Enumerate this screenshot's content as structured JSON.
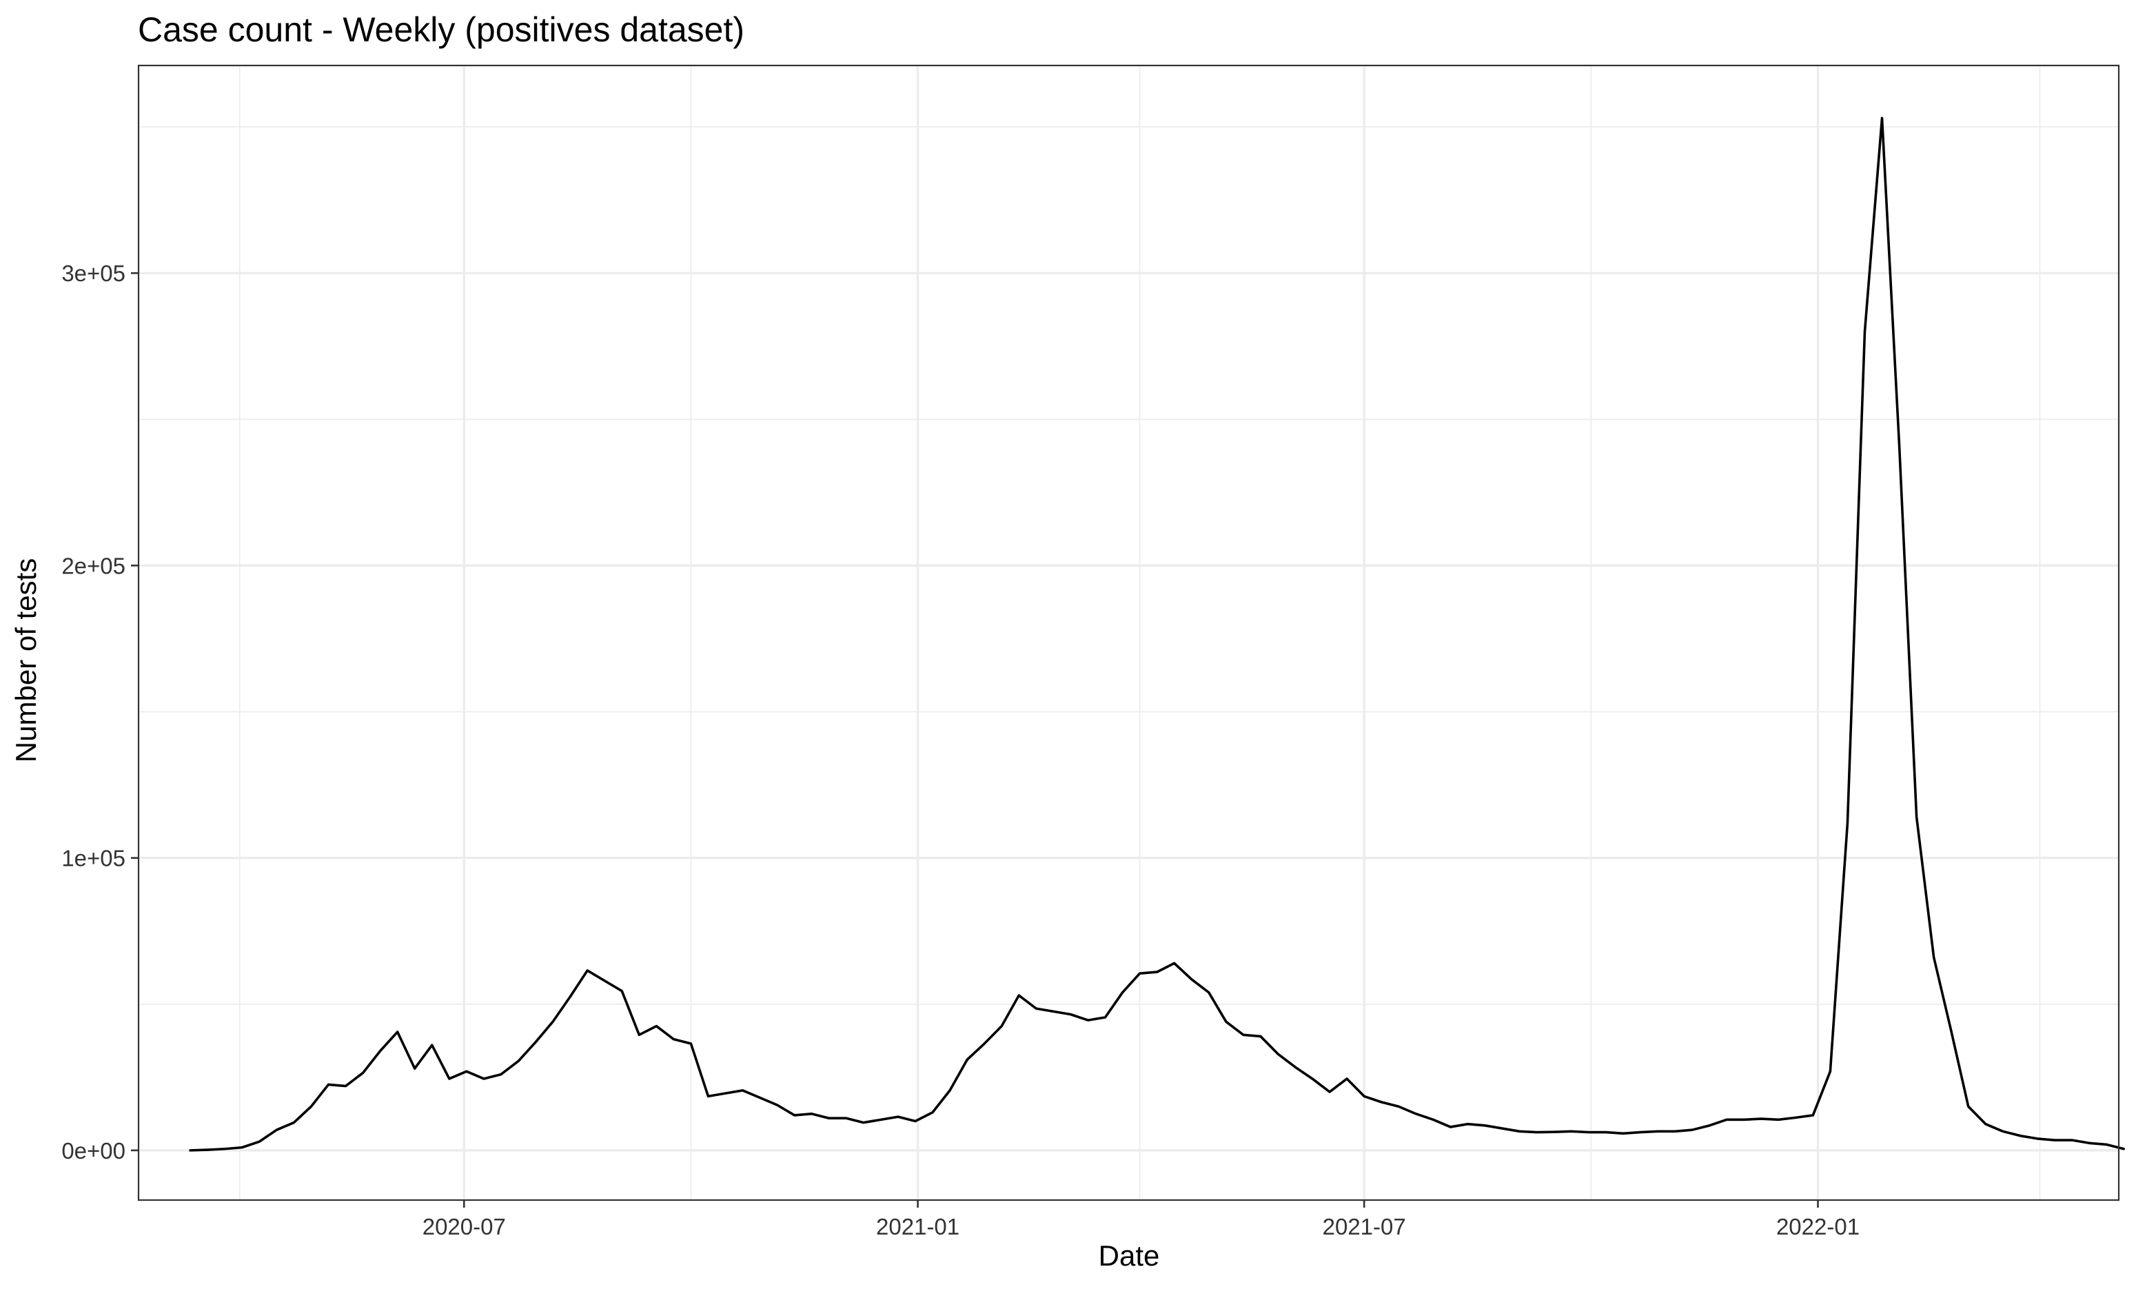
{
  "chart_data": {
    "type": "line",
    "title": "Case count - Weekly (positives dataset)",
    "xlabel": "Date",
    "ylabel": "Number of tests",
    "x_type": "date",
    "xlim": [
      "2020-02-20",
      "2022-05-03"
    ],
    "ylim": [
      -17000,
      371000
    ],
    "x_ticks": [
      "2020-07-01",
      "2021-01-01",
      "2021-07-01",
      "2022-01-01"
    ],
    "x_tick_labels": [
      "2020-07",
      "2021-01",
      "2021-07",
      "2022-01"
    ],
    "x_minor_ticks": [
      "2020-04-01",
      "2020-10-01",
      "2021-04-01",
      "2021-10-01",
      "2022-04-01"
    ],
    "y_ticks": [
      0,
      100000,
      200000,
      300000
    ],
    "y_tick_labels": [
      "0e+00",
      "1e+05",
      "2e+05",
      "3e+05"
    ],
    "y_minor_ticks": [
      50000,
      150000,
      250000,
      350000
    ],
    "grid": true,
    "legend": "none",
    "series": [
      {
        "color": "#000000",
        "points": [
          [
            "2020-03-12",
            0
          ],
          [
            "2020-03-19",
            200
          ],
          [
            "2020-03-26",
            500
          ],
          [
            "2020-04-02",
            1000
          ],
          [
            "2020-04-09",
            3000
          ],
          [
            "2020-04-16",
            7000
          ],
          [
            "2020-04-23",
            9500
          ],
          [
            "2020-04-30",
            15000
          ],
          [
            "2020-05-07",
            22500
          ],
          [
            "2020-05-14",
            22000
          ],
          [
            "2020-05-21",
            26500
          ],
          [
            "2020-05-28",
            34000
          ],
          [
            "2020-06-04",
            40500
          ],
          [
            "2020-06-11",
            28000
          ],
          [
            "2020-06-18",
            36000
          ],
          [
            "2020-06-25",
            24500
          ],
          [
            "2020-07-02",
            27000
          ],
          [
            "2020-07-09",
            24500
          ],
          [
            "2020-07-16",
            26000
          ],
          [
            "2020-07-23",
            30500
          ],
          [
            "2020-07-30",
            37000
          ],
          [
            "2020-08-06",
            44000
          ],
          [
            "2020-08-13",
            52500
          ],
          [
            "2020-08-20",
            61500
          ],
          [
            "2020-08-27",
            58000
          ],
          [
            "2020-09-03",
            54500
          ],
          [
            "2020-09-10",
            39500
          ],
          [
            "2020-09-17",
            42500
          ],
          [
            "2020-09-24",
            38000
          ],
          [
            "2020-10-01",
            36500
          ],
          [
            "2020-10-08",
            18500
          ],
          [
            "2020-10-15",
            19500
          ],
          [
            "2020-10-22",
            20500
          ],
          [
            "2020-10-29",
            18000
          ],
          [
            "2020-11-05",
            15500
          ],
          [
            "2020-11-12",
            12000
          ],
          [
            "2020-11-19",
            12500
          ],
          [
            "2020-11-26",
            11000
          ],
          [
            "2020-12-03",
            11000
          ],
          [
            "2020-12-10",
            9500
          ],
          [
            "2020-12-17",
            10500
          ],
          [
            "2020-12-24",
            11500
          ],
          [
            "2020-12-31",
            10000
          ],
          [
            "2021-01-07",
            13000
          ],
          [
            "2021-01-14",
            20500
          ],
          [
            "2021-01-21",
            31000
          ],
          [
            "2021-01-28",
            36500
          ],
          [
            "2021-02-04",
            42500
          ],
          [
            "2021-02-11",
            53000
          ],
          [
            "2021-02-18",
            48500
          ],
          [
            "2021-02-25",
            47500
          ],
          [
            "2021-03-04",
            46500
          ],
          [
            "2021-03-11",
            44500
          ],
          [
            "2021-03-18",
            45500
          ],
          [
            "2021-03-25",
            54000
          ],
          [
            "2021-04-01",
            60500
          ],
          [
            "2021-04-08",
            61000
          ],
          [
            "2021-04-15",
            64000
          ],
          [
            "2021-04-22",
            58500
          ],
          [
            "2021-04-29",
            54000
          ],
          [
            "2021-05-06",
            44000
          ],
          [
            "2021-05-13",
            39500
          ],
          [
            "2021-05-20",
            39000
          ],
          [
            "2021-05-27",
            33000
          ],
          [
            "2021-06-03",
            28500
          ],
          [
            "2021-06-10",
            24500
          ],
          [
            "2021-06-17",
            20000
          ],
          [
            "2021-06-24",
            24500
          ],
          [
            "2021-07-01",
            18500
          ],
          [
            "2021-07-08",
            16500
          ],
          [
            "2021-07-15",
            15000
          ],
          [
            "2021-07-22",
            12500
          ],
          [
            "2021-07-29",
            10500
          ],
          [
            "2021-08-05",
            8000
          ],
          [
            "2021-08-12",
            9000
          ],
          [
            "2021-08-19",
            8500
          ],
          [
            "2021-08-26",
            7500
          ],
          [
            "2021-09-02",
            6500
          ],
          [
            "2021-09-09",
            6200
          ],
          [
            "2021-09-16",
            6300
          ],
          [
            "2021-09-23",
            6500
          ],
          [
            "2021-09-30",
            6200
          ],
          [
            "2021-10-07",
            6200
          ],
          [
            "2021-10-14",
            5800
          ],
          [
            "2021-10-21",
            6200
          ],
          [
            "2021-10-28",
            6500
          ],
          [
            "2021-11-04",
            6500
          ],
          [
            "2021-11-11",
            7000
          ],
          [
            "2021-11-18",
            8500
          ],
          [
            "2021-11-25",
            10500
          ],
          [
            "2021-12-02",
            10500
          ],
          [
            "2021-12-09",
            10800
          ],
          [
            "2021-12-16",
            10500
          ],
          [
            "2021-12-23",
            11200
          ],
          [
            "2021-12-30",
            12000
          ],
          [
            "2022-01-06",
            27000
          ],
          [
            "2022-01-13",
            112000
          ],
          [
            "2022-01-20",
            280000
          ],
          [
            "2022-01-27",
            353000
          ],
          [
            "2022-02-03",
            241000
          ],
          [
            "2022-02-10",
            114000
          ],
          [
            "2022-02-17",
            66000
          ],
          [
            "2022-02-24",
            41000
          ],
          [
            "2022-03-03",
            15000
          ],
          [
            "2022-03-10",
            9000
          ],
          [
            "2022-03-17",
            6500
          ],
          [
            "2022-03-24",
            5000
          ],
          [
            "2022-03-31",
            4000
          ],
          [
            "2022-04-07",
            3500
          ],
          [
            "2022-04-14",
            3500
          ],
          [
            "2022-04-21",
            2500
          ],
          [
            "2022-04-28",
            2000
          ],
          [
            "2022-05-05",
            500
          ]
        ]
      }
    ]
  }
}
